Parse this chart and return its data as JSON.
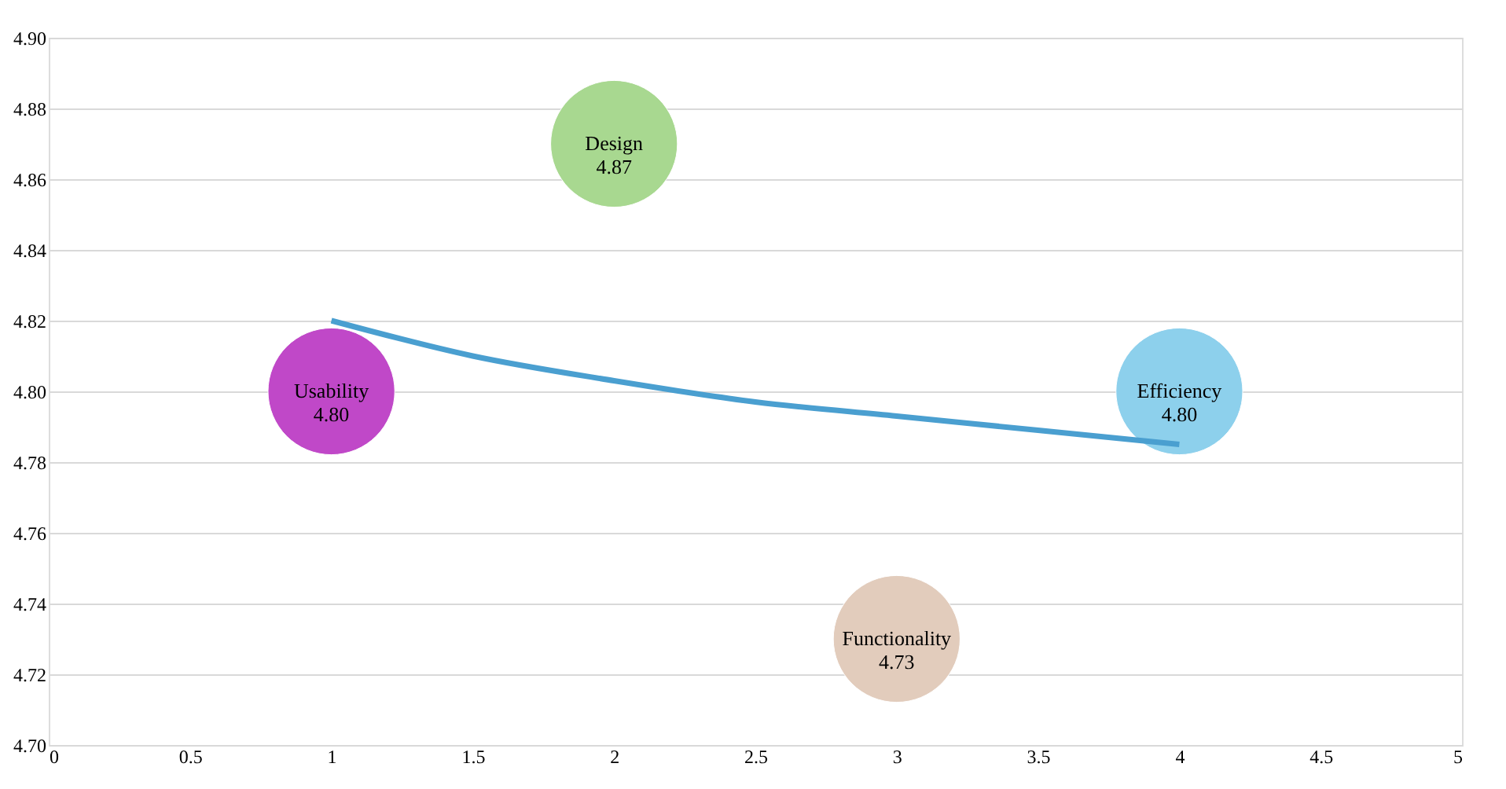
{
  "chart_data": {
    "type": "bubble",
    "xlim": [
      0,
      5
    ],
    "xticks": [
      0,
      0.5,
      1,
      1.5,
      2,
      2.5,
      3,
      3.5,
      4,
      4.5,
      5
    ],
    "ylim": [
      4.7,
      4.9
    ],
    "yticks": [
      {
        "value": 4.7,
        "label": "4.70"
      },
      {
        "value": 4.72,
        "label": "4.72"
      },
      {
        "value": 4.74,
        "label": "4.74"
      },
      {
        "value": 4.76,
        "label": "4.76"
      },
      {
        "value": 4.78,
        "label": "4.78"
      },
      {
        "value": 4.8,
        "label": "4.80"
      },
      {
        "value": 4.82,
        "label": "4.82"
      },
      {
        "value": 4.84,
        "label": "4.84"
      },
      {
        "value": 4.86,
        "label": "4.86"
      },
      {
        "value": 4.88,
        "label": "4.88"
      },
      {
        "value": 4.9,
        "label": "4.90"
      }
    ],
    "grid": "y",
    "series": [
      {
        "name": "Usability",
        "color": "#c048c8",
        "x": [
          1
        ],
        "values": [
          4.8
        ],
        "sizes": [
          1
        ],
        "value_labels": [
          "4.80"
        ]
      },
      {
        "name": "Design",
        "color": "#a8d890",
        "x": [
          2
        ],
        "values": [
          4.87
        ],
        "sizes": [
          1
        ],
        "value_labels": [
          "4.87"
        ]
      },
      {
        "name": "Functionality",
        "color": "#e2ccbc",
        "x": [
          3
        ],
        "values": [
          4.73
        ],
        "sizes": [
          1
        ],
        "value_labels": [
          "4.73"
        ]
      },
      {
        "name": "Efficiency",
        "color": "#8dd0ec",
        "x": [
          4
        ],
        "values": [
          4.8
        ],
        "sizes": [
          1
        ],
        "value_labels": [
          "4.80"
        ]
      },
      {
        "type": "line",
        "color": "#4a9fd0",
        "x": [
          1,
          1.5,
          2,
          2.5,
          3,
          3.5,
          4
        ],
        "values": [
          4.82,
          4.81,
          4.803,
          4.797,
          4.793,
          4.789,
          4.785
        ]
      }
    ]
  }
}
